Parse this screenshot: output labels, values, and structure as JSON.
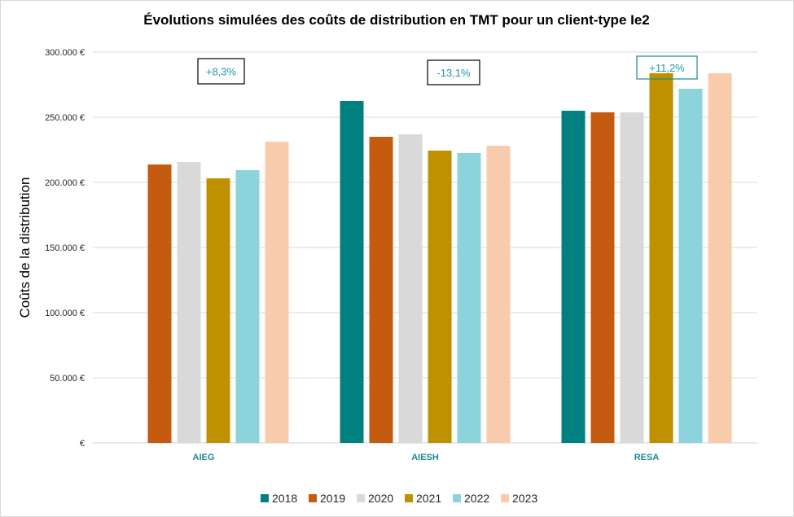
{
  "chart_data": {
    "type": "bar",
    "title": "Évolutions  simulées des coûts de distribution  en TMT pour un client-type  Ie2",
    "xlabel": "",
    "ylabel": "Coûts de la distribution",
    "ylim": [
      0,
      300000
    ],
    "yticks": [
      0,
      50000,
      100000,
      150000,
      200000,
      250000,
      300000
    ],
    "ytick_labels": [
      "€",
      "50.000 €",
      "100.000 €",
      "150.000 €",
      "200.000 €",
      "250.000 €",
      "300.000 €"
    ],
    "grid": true,
    "legend_position": "bottom",
    "categories": [
      "AIEG",
      "AIESH",
      "RESA"
    ],
    "series": [
      {
        "name": "2018",
        "color": "#008080",
        "values": [
          null,
          262500,
          255000
        ]
      },
      {
        "name": "2019",
        "color": "#c55a11",
        "values": [
          213700,
          235000,
          253800
        ]
      },
      {
        "name": "2020",
        "color": "#d9d9d9",
        "values": [
          215600,
          236900,
          253800
        ]
      },
      {
        "name": "2021",
        "color": "#bf9000",
        "values": [
          203100,
          224400,
          283800
        ]
      },
      {
        "name": "2022",
        "color": "#8dd3dc",
        "values": [
          209400,
          222500,
          271900
        ]
      },
      {
        "name": "2023",
        "color": "#f8cbad",
        "values": [
          231200,
          228100,
          283800
        ]
      }
    ],
    "annotations": [
      {
        "category": "AIEG",
        "text": "+8,3%",
        "border_color": "#000000"
      },
      {
        "category": "AIESH",
        "text": "-13,1%",
        "border_color": "#000000"
      },
      {
        "category": "RESA",
        "text": "+11,2%",
        "border_color": "#1b8a8f"
      }
    ]
  }
}
